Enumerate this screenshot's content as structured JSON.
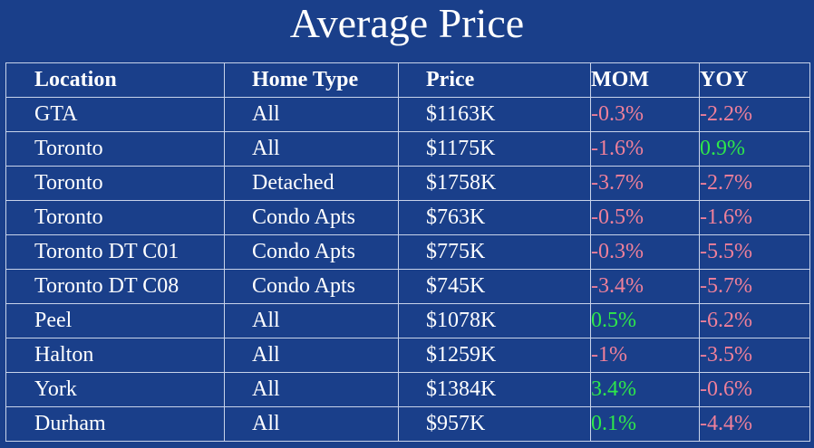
{
  "title": "Average Price",
  "colors": {
    "background": "#1a3f8a",
    "negative": "#f0809a",
    "positive": "#2ee84a"
  },
  "chart_data": {
    "type": "table",
    "title": "Average Price",
    "columns": [
      "Location",
      "Home Type",
      "Price",
      "MOM",
      "YOY"
    ],
    "rows": [
      [
        "GTA",
        "All",
        "$1163K",
        "-0.3%",
        "-2.2%"
      ],
      [
        "Toronto",
        "All",
        "$1175K",
        "-1.6%",
        "0.9%"
      ],
      [
        "Toronto",
        "Detached",
        "$1758K",
        "-3.7%",
        "-2.7%"
      ],
      [
        "Toronto",
        "Condo Apts",
        "$763K",
        "-0.5%",
        "-1.6%"
      ],
      [
        "Toronto DT C01",
        "Condo Apts",
        "$775K",
        "-0.3%",
        "-5.5%"
      ],
      [
        "Toronto DT C08",
        "Condo Apts",
        "$745K",
        "-3.4%",
        "-5.7%"
      ],
      [
        "Peel",
        "All",
        "$1078K",
        "0.5%",
        "-6.2%"
      ],
      [
        "Halton",
        "All",
        "$1259K",
        "-1%",
        "-3.5%"
      ],
      [
        "York",
        "All",
        "$1384K",
        "3.4%",
        "-0.6%"
      ],
      [
        "Durham",
        "All",
        "$957K",
        "0.1%",
        "-4.4%"
      ]
    ]
  }
}
